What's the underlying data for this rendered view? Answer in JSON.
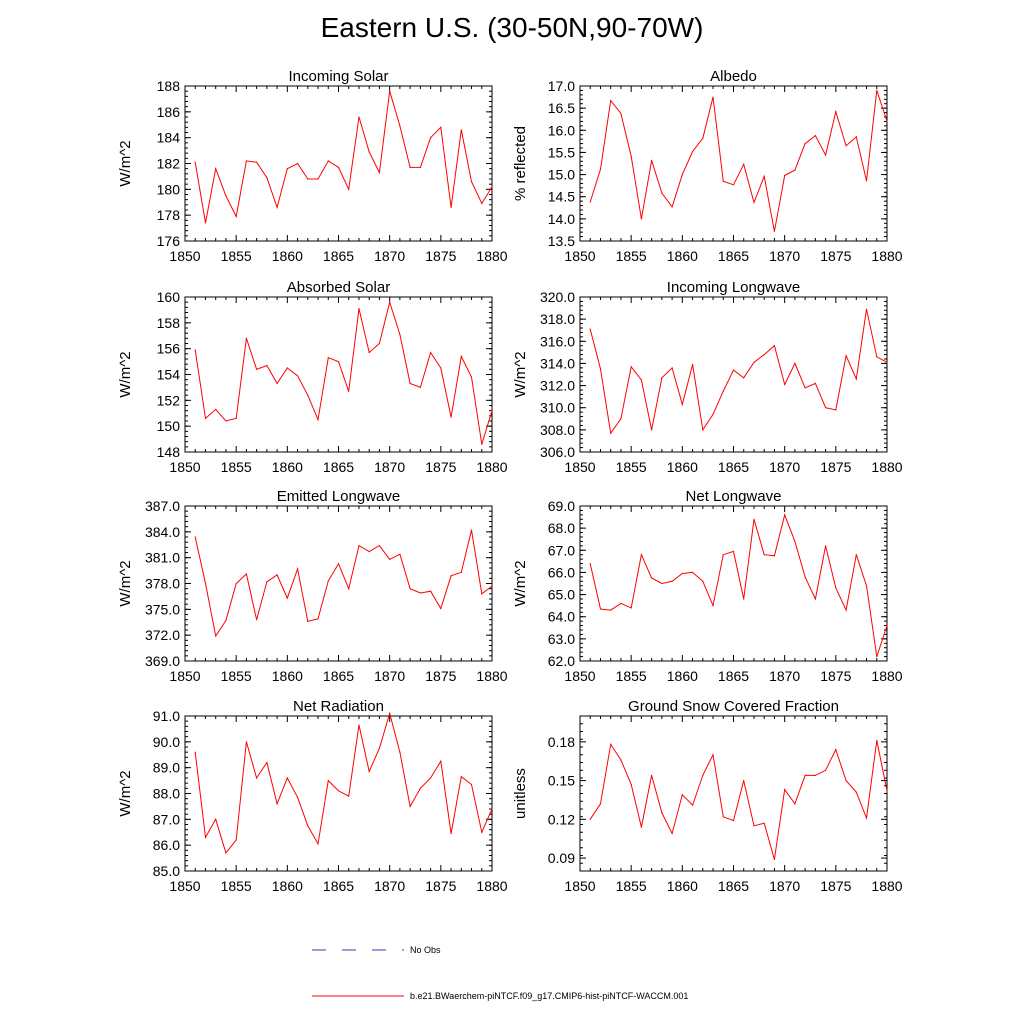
{
  "title": "Eastern U.S. (30-50N,90-70W)",
  "legend": [
    {
      "label": "No Obs",
      "color": "#3a3aa8",
      "style": "dashed"
    },
    {
      "label": "b.e21.BWaerchem-piNTCF.f09_g17.CMIP6-hist-piNTCF-WACCM.001",
      "color": "#ff0000",
      "style": "solid"
    }
  ],
  "colors": {
    "series": "#ff0000",
    "axis": "#000000"
  },
  "chart_data": [
    {
      "type": "line",
      "title": "Incoming Solar",
      "ylabel": "W/m^2",
      "xlim": [
        1850,
        1880
      ],
      "ylim": [
        176,
        188
      ],
      "yticks": [
        "176",
        "178",
        "180",
        "182",
        "184",
        "186",
        "188"
      ],
      "xticks": [
        "1850",
        "1855",
        "1860",
        "1865",
        "1870",
        "1875",
        "1880"
      ],
      "x": [
        1851,
        1852,
        1853,
        1854,
        1855,
        1856,
        1857,
        1858,
        1859,
        1860,
        1861,
        1862,
        1863,
        1864,
        1865,
        1866,
        1867,
        1868,
        1869,
        1870,
        1871,
        1872,
        1873,
        1874,
        1875,
        1876,
        1877,
        1878,
        1879,
        1880
      ],
      "series": [
        {
          "values": [
            182.1,
            177.4,
            181.6,
            179.5,
            177.9,
            182.2,
            182.1,
            180.9,
            178.6,
            181.6,
            182.0,
            180.8,
            180.8,
            182.2,
            181.7,
            180.0,
            185.6,
            182.9,
            181.3,
            187.6,
            184.9,
            181.7,
            181.7,
            184.0,
            184.8,
            178.6,
            184.6,
            180.6,
            178.9,
            180.2
          ]
        }
      ]
    },
    {
      "type": "line",
      "title": "Albedo",
      "ylabel": "% reflected",
      "xlim": [
        1850,
        1880
      ],
      "ylim": [
        13.5,
        17.0
      ],
      "yticks": [
        "13.5",
        "14.0",
        "14.5",
        "15.0",
        "15.5",
        "16.0",
        "16.5",
        "17.0"
      ],
      "xticks": [
        "1850",
        "1855",
        "1860",
        "1865",
        "1870",
        "1875",
        "1880"
      ],
      "x": [
        1851,
        1852,
        1853,
        1854,
        1855,
        1856,
        1857,
        1858,
        1859,
        1860,
        1861,
        1862,
        1863,
        1864,
        1865,
        1866,
        1867,
        1868,
        1869,
        1870,
        1871,
        1872,
        1873,
        1874,
        1875,
        1876,
        1877,
        1878,
        1879,
        1880
      ],
      "series": [
        {
          "values": [
            14.38,
            15.12,
            16.67,
            16.38,
            15.41,
            14.0,
            15.32,
            14.58,
            14.27,
            15.0,
            15.52,
            15.82,
            16.75,
            14.85,
            14.77,
            15.23,
            14.37,
            14.96,
            13.72,
            14.98,
            15.1,
            15.7,
            15.88,
            15.44,
            16.42,
            15.65,
            15.85,
            14.86,
            16.9,
            16.2
          ]
        }
      ]
    },
    {
      "type": "line",
      "title": "Absorbed Solar",
      "ylabel": "W/m^2",
      "xlim": [
        1850,
        1880
      ],
      "ylim": [
        148,
        160
      ],
      "yticks": [
        "148",
        "150",
        "152",
        "154",
        "156",
        "158",
        "160"
      ],
      "xticks": [
        "1850",
        "1855",
        "1860",
        "1865",
        "1870",
        "1875",
        "1880"
      ],
      "x": [
        1851,
        1852,
        1853,
        1854,
        1855,
        1856,
        1857,
        1858,
        1859,
        1860,
        1861,
        1862,
        1863,
        1864,
        1865,
        1866,
        1867,
        1868,
        1869,
        1870,
        1871,
        1872,
        1873,
        1874,
        1875,
        1876,
        1877,
        1878,
        1879,
        1880
      ],
      "series": [
        {
          "values": [
            155.9,
            150.6,
            151.3,
            150.4,
            150.6,
            156.8,
            154.4,
            154.7,
            153.3,
            154.5,
            153.9,
            152.4,
            150.5,
            155.3,
            155.0,
            152.7,
            159.1,
            155.7,
            156.4,
            159.6,
            157.1,
            153.3,
            153.0,
            155.7,
            154.5,
            150.7,
            155.4,
            153.8,
            148.6,
            151.2
          ]
        }
      ]
    },
    {
      "type": "line",
      "title": "Incoming Longwave",
      "ylabel": "W/m^2",
      "xlim": [
        1850,
        1880
      ],
      "ylim": [
        306.0,
        320.0
      ],
      "yticks": [
        "306.0",
        "308.0",
        "310.0",
        "312.0",
        "314.0",
        "316.0",
        "318.0",
        "320.0"
      ],
      "xticks": [
        "1850",
        "1855",
        "1860",
        "1865",
        "1870",
        "1875",
        "1880"
      ],
      "x": [
        1851,
        1852,
        1853,
        1854,
        1855,
        1856,
        1857,
        1858,
        1859,
        1860,
        1861,
        1862,
        1863,
        1864,
        1865,
        1866,
        1867,
        1868,
        1869,
        1870,
        1871,
        1872,
        1873,
        1874,
        1875,
        1876,
        1877,
        1878,
        1879,
        1880
      ],
      "series": [
        {
          "values": [
            317.1,
            313.5,
            307.7,
            309.0,
            313.7,
            312.5,
            308.0,
            312.7,
            313.6,
            310.3,
            313.9,
            308.0,
            309.4,
            311.5,
            313.4,
            312.7,
            314.1,
            314.8,
            315.6,
            312.1,
            314.0,
            311.8,
            312.2,
            310.0,
            309.8,
            314.7,
            312.6,
            318.9,
            314.6,
            314.1
          ]
        }
      ]
    },
    {
      "type": "line",
      "title": "Emitted Longwave",
      "ylabel": "W/m^2",
      "xlim": [
        1850,
        1880
      ],
      "ylim": [
        369.0,
        387.0
      ],
      "yticks": [
        "369.0",
        "372.0",
        "375.0",
        "378.0",
        "381.0",
        "384.0",
        "387.0"
      ],
      "xticks": [
        "1850",
        "1855",
        "1860",
        "1865",
        "1870",
        "1875",
        "1880"
      ],
      "x": [
        1851,
        1852,
        1853,
        1854,
        1855,
        1856,
        1857,
        1858,
        1859,
        1860,
        1861,
        1862,
        1863,
        1864,
        1865,
        1866,
        1867,
        1868,
        1869,
        1870,
        1871,
        1872,
        1873,
        1874,
        1875,
        1876,
        1877,
        1878,
        1879,
        1880
      ],
      "series": [
        {
          "values": [
            383.4,
            378.0,
            371.9,
            373.7,
            378.0,
            379.1,
            373.8,
            378.2,
            379.0,
            376.3,
            379.7,
            373.6,
            373.9,
            378.3,
            380.3,
            377.4,
            382.4,
            381.7,
            382.4,
            380.8,
            381.4,
            377.4,
            376.9,
            377.1,
            375.1,
            378.9,
            379.3,
            384.2,
            376.8,
            377.7
          ]
        }
      ]
    },
    {
      "type": "line",
      "title": "Net Longwave",
      "ylabel": "W/m^2",
      "xlim": [
        1850,
        1880
      ],
      "ylim": [
        62.0,
        69.0
      ],
      "yticks": [
        "62.0",
        "63.0",
        "64.0",
        "65.0",
        "66.0",
        "67.0",
        "68.0",
        "69.0"
      ],
      "xticks": [
        "1850",
        "1855",
        "1860",
        "1865",
        "1870",
        "1875",
        "1880"
      ],
      "x": [
        1851,
        1852,
        1853,
        1854,
        1855,
        1856,
        1857,
        1858,
        1859,
        1860,
        1861,
        1862,
        1863,
        1864,
        1865,
        1866,
        1867,
        1868,
        1869,
        1870,
        1871,
        1872,
        1873,
        1874,
        1875,
        1876,
        1877,
        1878,
        1879,
        1880
      ],
      "series": [
        {
          "values": [
            66.4,
            64.35,
            64.3,
            64.6,
            64.4,
            66.8,
            65.75,
            65.5,
            65.6,
            65.95,
            66.0,
            65.6,
            64.5,
            66.8,
            66.95,
            64.8,
            68.4,
            66.8,
            66.75,
            68.6,
            67.4,
            65.8,
            64.8,
            67.2,
            65.3,
            64.3,
            66.8,
            65.4,
            62.2,
            63.6
          ]
        }
      ]
    },
    {
      "type": "line",
      "title": "Net Radiation",
      "ylabel": "W/m^2",
      "xlim": [
        1850,
        1880
      ],
      "ylim": [
        85.0,
        91.0
      ],
      "yticks": [
        "85.0",
        "86.0",
        "87.0",
        "88.0",
        "89.0",
        "90.0",
        "91.0"
      ],
      "xticks": [
        "1850",
        "1855",
        "1860",
        "1865",
        "1870",
        "1875",
        "1880"
      ],
      "x": [
        1851,
        1852,
        1853,
        1854,
        1855,
        1856,
        1857,
        1858,
        1859,
        1860,
        1861,
        1862,
        1863,
        1864,
        1865,
        1866,
        1867,
        1868,
        1869,
        1870,
        1871,
        1872,
        1873,
        1874,
        1875,
        1876,
        1877,
        1878,
        1879,
        1880
      ],
      "series": [
        {
          "values": [
            89.6,
            86.3,
            87.0,
            85.7,
            86.2,
            90.0,
            88.6,
            89.2,
            87.6,
            88.6,
            87.85,
            86.75,
            86.05,
            88.5,
            88.1,
            87.9,
            90.65,
            88.85,
            89.75,
            91.1,
            89.6,
            87.5,
            88.2,
            88.6,
            89.25,
            86.45,
            88.65,
            88.35,
            86.5,
            87.4
          ]
        }
      ]
    },
    {
      "type": "line",
      "title": "Ground Snow Covered Fraction",
      "ylabel": "unitless",
      "xlim": [
        1850,
        1880
      ],
      "ylim": [
        0.08,
        0.2
      ],
      "yticks": [
        "0.09",
        "0.12",
        "0.15",
        "0.18"
      ],
      "xticks": [
        "1850",
        "1855",
        "1860",
        "1865",
        "1870",
        "1875",
        "1880"
      ],
      "x": [
        1851,
        1852,
        1853,
        1854,
        1855,
        1856,
        1857,
        1858,
        1859,
        1860,
        1861,
        1862,
        1863,
        1864,
        1865,
        1866,
        1867,
        1868,
        1869,
        1870,
        1871,
        1872,
        1873,
        1874,
        1875,
        1876,
        1877,
        1878,
        1879,
        1880
      ],
      "series": [
        {
          "values": [
            0.12,
            0.132,
            0.178,
            0.166,
            0.147,
            0.114,
            0.154,
            0.125,
            0.109,
            0.139,
            0.131,
            0.154,
            0.17,
            0.122,
            0.119,
            0.15,
            0.115,
            0.117,
            0.089,
            0.143,
            0.132,
            0.154,
            0.154,
            0.158,
            0.174,
            0.15,
            0.141,
            0.121,
            0.181,
            0.142
          ]
        }
      ]
    }
  ]
}
